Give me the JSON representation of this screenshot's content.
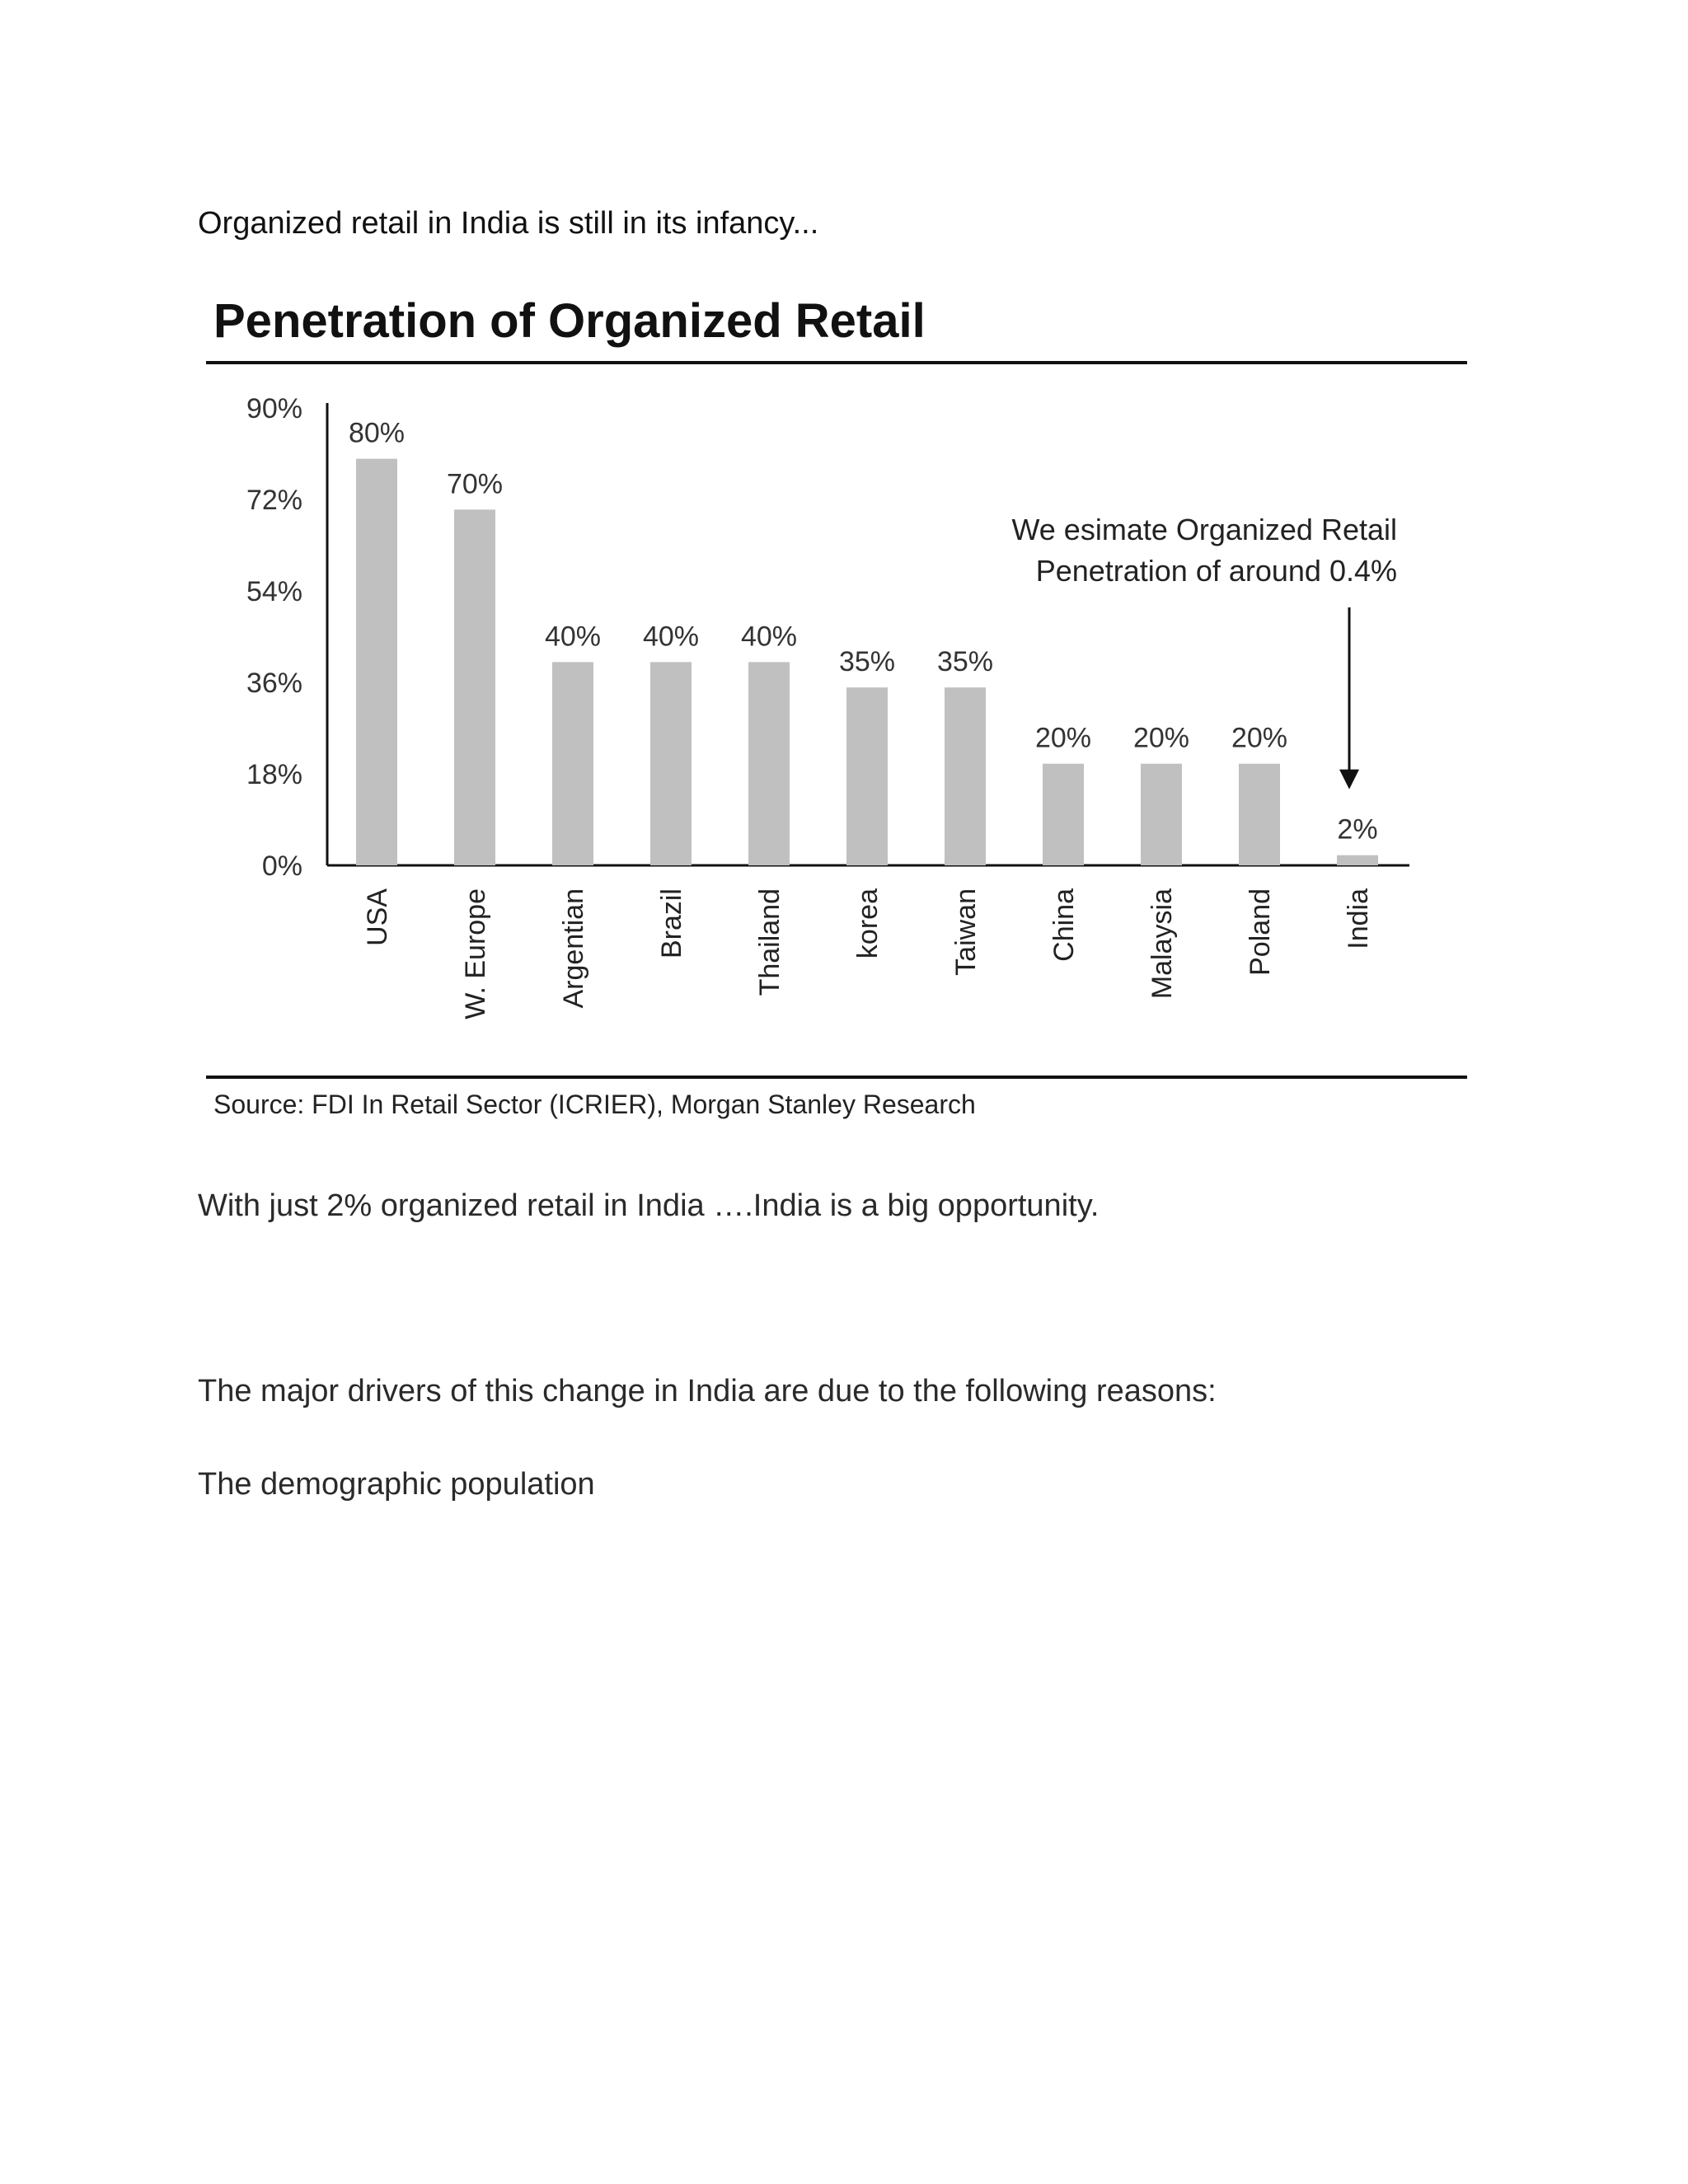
{
  "document": {
    "intro": "Organized retail in India is still in its infancy...",
    "opportunity": "With just 2% organized retail in India ….India is a big opportunity.",
    "drivers": "The major drivers of this change in India are due to the following reasons:",
    "demographic": "The demographic population"
  },
  "chart_data": {
    "type": "bar",
    "title": "Penetration of Organized Retail",
    "categories": [
      "USA",
      "W. Europe",
      "Argentian",
      "Brazil",
      "Thailand",
      "korea",
      "Taiwan",
      "China",
      "Malaysia",
      "Poland",
      "India"
    ],
    "values": [
      80,
      70,
      40,
      40,
      40,
      35,
      35,
      20,
      20,
      20,
      2
    ],
    "value_labels": [
      "80%",
      "70%",
      "40%",
      "40%",
      "40%",
      "35%",
      "35%",
      "20%",
      "20%",
      "20%",
      "2%"
    ],
    "ylim": [
      0,
      90
    ],
    "yticks": [
      0,
      18,
      36,
      54,
      72,
      90
    ],
    "ytick_labels": [
      "0%",
      "18%",
      "36%",
      "54%",
      "72%",
      "90%"
    ],
    "xlabel": "",
    "ylabel": "",
    "bar_color": "#c0c0c0",
    "annotation": {
      "lines": [
        "We esimate Organized Retail",
        "Penetration of around 0.4%"
      ],
      "points_to": "India"
    },
    "source": "Source: FDI In Retail Sector (ICRIER), Morgan Stanley Research"
  }
}
